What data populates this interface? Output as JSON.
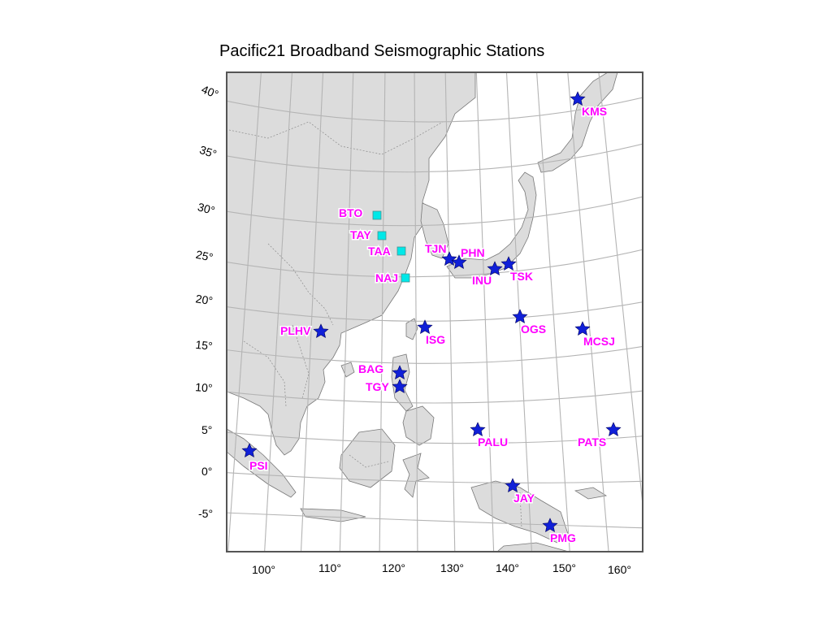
{
  "title": "Pacific21 Broadband Seismographic Stations",
  "colors": {
    "land": "#dcdcdc",
    "ocean": "#ffffff",
    "graticule": "#b4b4b4",
    "frame": "#555555",
    "label": "#ff00ff",
    "star": "#1020d8",
    "square": "#00e8e8"
  },
  "axes": {
    "longitude_labels": [
      "100°",
      "110°",
      "120°",
      "130°",
      "140°",
      "150°",
      "160°"
    ],
    "latitude_labels": [
      "40°",
      "35°",
      "30°",
      "25°",
      "20°",
      "15°",
      "10°",
      "5°",
      "0°",
      "-5°"
    ]
  },
  "stations": [
    {
      "code": "KMS",
      "marker": "star-icon"
    },
    {
      "code": "BTO",
      "marker": "square-icon"
    },
    {
      "code": "TAY",
      "marker": "square-icon"
    },
    {
      "code": "TAA",
      "marker": "square-icon"
    },
    {
      "code": "NAJ",
      "marker": "square-icon"
    },
    {
      "code": "TJN",
      "marker": "star-icon"
    },
    {
      "code": "PHN",
      "marker": "star-icon"
    },
    {
      "code": "INU",
      "marker": "star-icon"
    },
    {
      "code": "TSK",
      "marker": "star-icon"
    },
    {
      "code": "PLHV",
      "marker": "star-icon"
    },
    {
      "code": "ISG",
      "marker": "star-icon"
    },
    {
      "code": "OGS",
      "marker": "star-icon"
    },
    {
      "code": "MCSJ",
      "marker": "star-icon"
    },
    {
      "code": "BAG",
      "marker": "star-icon"
    },
    {
      "code": "TGY",
      "marker": "star-icon"
    },
    {
      "code": "PALU",
      "marker": "star-icon"
    },
    {
      "code": "PATS",
      "marker": "star-icon"
    },
    {
      "code": "PSI",
      "marker": "star-icon"
    },
    {
      "code": "JAY",
      "marker": "star-icon"
    },
    {
      "code": "PMG",
      "marker": "star-icon"
    }
  ]
}
